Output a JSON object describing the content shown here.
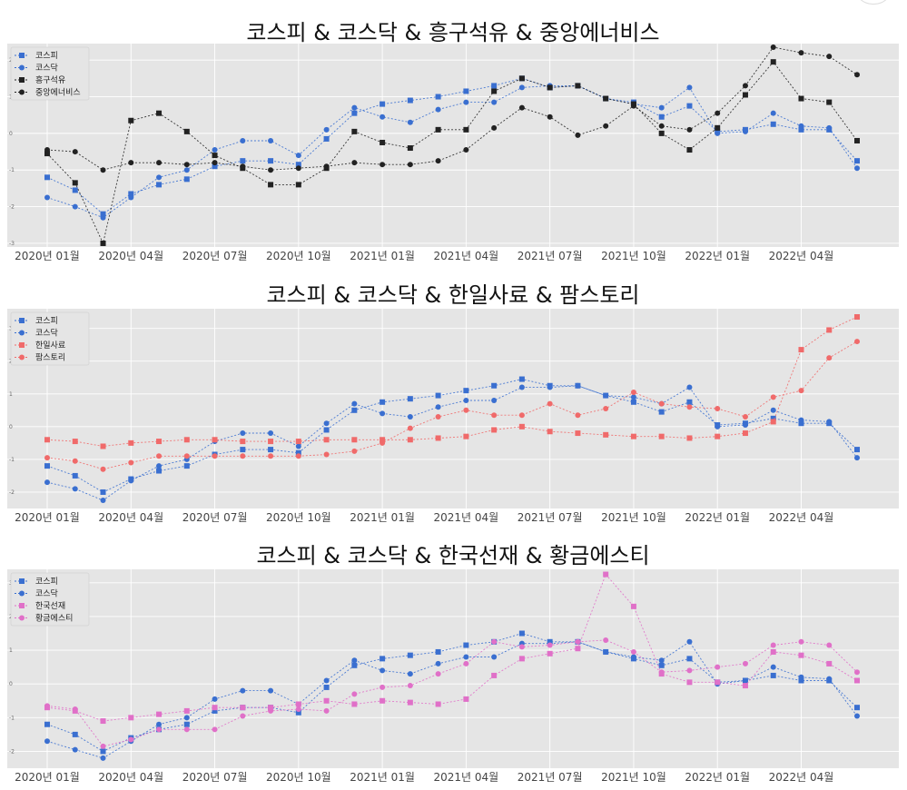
{
  "chart_data": [
    {
      "type": "line",
      "title": "코스피 & 코스닥 & 흥구석유 & 중앙에너비스",
      "xticks": [
        "2020년 01월",
        "2020년 04월",
        "2020년 07월",
        "2020년 10월",
        "2021년 01월",
        "2021년 04월",
        "2021년 07월",
        "2021년 10월",
        "2022년 01월",
        "2022년 04월"
      ],
      "yticks": [
        "2",
        "1",
        "0",
        "-1",
        "-2",
        "-3"
      ],
      "ylim": [
        -3.1,
        2.45
      ],
      "grid": true,
      "legend_position": "top-left",
      "series": [
        {
          "name": "코스피",
          "marker": "square",
          "color": "#3a6fd0",
          "values": [
            -1.2,
            -1.55,
            -2.2,
            -1.65,
            -1.4,
            -1.25,
            -0.9,
            -0.75,
            -0.75,
            -0.85,
            -0.15,
            0.55,
            0.8,
            0.9,
            1.0,
            1.15,
            1.3,
            1.5,
            1.25,
            1.3,
            0.95,
            0.85,
            0.45,
            0.75,
            0.05,
            0.1,
            0.25,
            0.1,
            0.1,
            -0.75
          ]
        },
        {
          "name": "코스닥",
          "marker": "circle",
          "color": "#3a6fd0",
          "values": [
            -1.75,
            -2.0,
            -2.3,
            -1.75,
            -1.2,
            -1.0,
            -0.45,
            -0.2,
            -0.2,
            -0.6,
            0.1,
            0.7,
            0.45,
            0.3,
            0.65,
            0.85,
            0.85,
            1.25,
            1.3,
            1.3,
            0.95,
            0.8,
            0.7,
            1.25,
            0.0,
            0.05,
            0.55,
            0.2,
            0.15,
            -0.95
          ]
        },
        {
          "name": "흥구석유",
          "marker": "square",
          "color": "#222222",
          "values": [
            -0.55,
            -1.35,
            -3.0,
            0.35,
            0.55,
            0.05,
            -0.6,
            -0.95,
            -1.4,
            -1.4,
            -0.95,
            0.05,
            -0.25,
            -0.4,
            0.1,
            0.1,
            1.15,
            1.5,
            1.25,
            1.3,
            0.95,
            0.8,
            0.0,
            -0.45,
            0.15,
            1.05,
            1.95,
            0.95,
            0.85,
            -0.2
          ]
        },
        {
          "name": "중앙에너비스",
          "marker": "circle",
          "color": "#222222",
          "values": [
            -0.45,
            -0.5,
            -1.0,
            -0.8,
            -0.8,
            -0.85,
            -0.8,
            -0.9,
            -1.0,
            -0.95,
            -0.9,
            -0.8,
            -0.85,
            -0.85,
            -0.75,
            -0.45,
            0.15,
            0.7,
            0.45,
            -0.05,
            0.2,
            0.75,
            0.2,
            0.1,
            0.55,
            1.3,
            2.35,
            2.2,
            2.1,
            1.6
          ]
        }
      ]
    },
    {
      "type": "line",
      "title": "코스피 & 코스닥 & 한일사료 & 팜스토리",
      "xticks": [
        "2020년 01월",
        "2020년 04월",
        "2020년 07월",
        "2020년 10월",
        "2021년 01월",
        "2021년 04월",
        "2021년 07월",
        "2021년 10월",
        "2022년 01월",
        "2022년 04월"
      ],
      "yticks": [
        "3",
        "2",
        "1",
        "0",
        "-1",
        "-2"
      ],
      "ylim": [
        -2.5,
        3.6
      ],
      "grid": true,
      "legend_position": "top-left",
      "series": [
        {
          "name": "코스피",
          "marker": "square",
          "color": "#3a6fd0",
          "values": [
            -1.2,
            -1.5,
            -2.0,
            -1.6,
            -1.35,
            -1.2,
            -0.85,
            -0.7,
            -0.7,
            -0.8,
            -0.1,
            0.5,
            0.75,
            0.85,
            0.95,
            1.1,
            1.25,
            1.45,
            1.25,
            1.25,
            0.95,
            0.75,
            0.45,
            0.75,
            0.05,
            0.1,
            0.25,
            0.1,
            0.1,
            -0.7
          ]
        },
        {
          "name": "코스닥",
          "marker": "circle",
          "color": "#3a6fd0",
          "values": [
            -1.7,
            -1.9,
            -2.25,
            -1.65,
            -1.2,
            -1.0,
            -0.45,
            -0.2,
            -0.2,
            -0.6,
            0.1,
            0.7,
            0.4,
            0.3,
            0.6,
            0.8,
            0.8,
            1.2,
            1.2,
            1.25,
            0.95,
            0.9,
            0.7,
            1.2,
            0.0,
            0.05,
            0.5,
            0.2,
            0.15,
            -0.95
          ]
        },
        {
          "name": "한일사료",
          "marker": "square",
          "color": "#f06a6a",
          "values": [
            -0.4,
            -0.45,
            -0.6,
            -0.5,
            -0.45,
            -0.4,
            -0.4,
            -0.45,
            -0.45,
            -0.45,
            -0.4,
            -0.4,
            -0.4,
            -0.4,
            -0.35,
            -0.3,
            -0.1,
            0.0,
            -0.15,
            -0.2,
            -0.25,
            -0.3,
            -0.3,
            -0.35,
            -0.3,
            -0.2,
            0.15,
            2.35,
            2.95,
            3.35
          ]
        },
        {
          "name": "팜스토리",
          "marker": "circle",
          "color": "#f06a6a",
          "values": [
            -0.95,
            -1.05,
            -1.3,
            -1.1,
            -0.9,
            -0.9,
            -0.9,
            -0.9,
            -0.9,
            -0.9,
            -0.85,
            -0.75,
            -0.5,
            -0.05,
            0.3,
            0.5,
            0.35,
            0.35,
            0.7,
            0.35,
            0.55,
            1.05,
            0.7,
            0.6,
            0.55,
            0.3,
            0.9,
            1.1,
            2.1,
            2.6
          ]
        }
      ]
    },
    {
      "type": "line",
      "title": "코스피 & 코스닥 & 한국선재 & 황금에스티",
      "xticks": [
        "2020년 01월",
        "2020년 04월",
        "2020년 07월",
        "2020년 10월",
        "2021년 01월",
        "2021년 04월",
        "2021년 07월",
        "2021년 10월",
        "2022년 01월",
        "2022년 04월"
      ],
      "yticks": [
        "3",
        "2",
        "1",
        "0",
        "-1",
        "-2"
      ],
      "ylim": [
        -2.5,
        3.4
      ],
      "grid": true,
      "legend_position": "top-left",
      "series": [
        {
          "name": "코스피",
          "marker": "square",
          "color": "#3a6fd0",
          "values": [
            -1.2,
            -1.5,
            -2.0,
            -1.6,
            -1.35,
            -1.2,
            -0.8,
            -0.7,
            -0.7,
            -0.85,
            -0.1,
            0.55,
            0.75,
            0.85,
            0.95,
            1.15,
            1.25,
            1.5,
            1.25,
            1.25,
            0.95,
            0.75,
            0.55,
            0.75,
            0.05,
            0.1,
            0.25,
            0.1,
            0.1,
            -0.7
          ]
        },
        {
          "name": "코스닥",
          "marker": "circle",
          "color": "#3a6fd0",
          "values": [
            -1.7,
            -1.95,
            -2.2,
            -1.7,
            -1.2,
            -1.0,
            -0.45,
            -0.2,
            -0.2,
            -0.6,
            0.1,
            0.7,
            0.4,
            0.3,
            0.6,
            0.8,
            0.8,
            1.2,
            1.2,
            1.25,
            0.95,
            0.8,
            0.7,
            1.25,
            0.0,
            0.1,
            0.5,
            0.2,
            0.15,
            -0.95
          ]
        },
        {
          "name": "한국선재",
          "marker": "square",
          "color": "#e070c8",
          "values": [
            -0.7,
            -0.8,
            -1.1,
            -1.0,
            -0.9,
            -0.8,
            -0.7,
            -0.7,
            -0.7,
            -0.6,
            -0.5,
            -0.6,
            -0.5,
            -0.55,
            -0.6,
            -0.45,
            0.25,
            0.75,
            0.9,
            1.05,
            3.25,
            2.3,
            0.3,
            0.05,
            0.05,
            -0.05,
            0.95,
            0.85,
            0.6,
            0.1
          ]
        },
        {
          "name": "황금에스티",
          "marker": "circle",
          "color": "#e070c8",
          "values": [
            -0.65,
            -0.75,
            -1.85,
            -1.65,
            -1.35,
            -1.35,
            -1.35,
            -0.95,
            -0.8,
            -0.75,
            -0.8,
            -0.3,
            -0.1,
            -0.05,
            0.3,
            0.6,
            1.25,
            1.1,
            1.15,
            1.25,
            1.3,
            0.95,
            0.35,
            0.4,
            0.5,
            0.6,
            1.15,
            1.25,
            1.15,
            0.35
          ]
        }
      ]
    }
  ]
}
